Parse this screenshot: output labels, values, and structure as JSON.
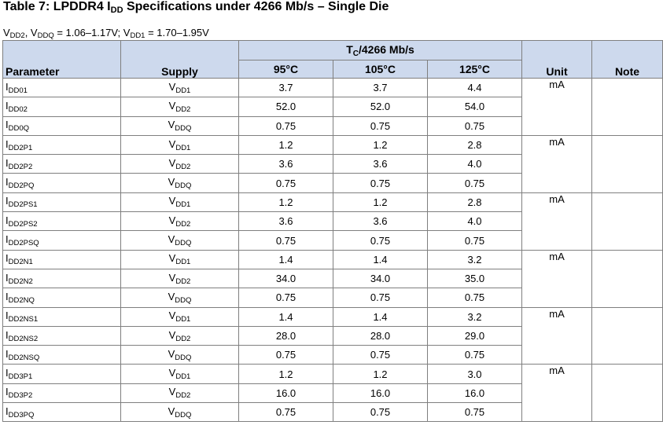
{
  "title": {
    "prefix": "Table 7: LPDDR4 I",
    "sub": "DD",
    "suffix": " Specifications under 4266 Mb/s – Single Die"
  },
  "conditions": [
    {
      "sym": "V",
      "sub": "DD2",
      "text": ", "
    },
    {
      "sym": "V",
      "sub": "DDQ",
      "text": " = 1.06–1.17V; "
    },
    {
      "sym": "V",
      "sub": "DD1",
      "text": " = 1.70–1.95V"
    }
  ],
  "headers": {
    "parameter": "Parameter",
    "supply": "Supply",
    "group_sym": "T",
    "group_sub": "C",
    "group_text": "/4266 Mb/s",
    "temps": [
      "95°C",
      "105°C",
      "125°C"
    ],
    "unit": "Unit",
    "note": "Note"
  },
  "groups": [
    {
      "unit": "mA",
      "note": "",
      "rows": [
        {
          "param": "DD01",
          "supply": "DD1",
          "v95": "3.7",
          "v105": "3.7",
          "v125": "4.4"
        },
        {
          "param": "DD02",
          "supply": "DD2",
          "v95": "52.0",
          "v105": "52.0",
          "v125": "54.0"
        },
        {
          "param": "DD0Q",
          "supply": "DDQ",
          "v95": "0.75",
          "v105": "0.75",
          "v125": "0.75"
        }
      ]
    },
    {
      "unit": "mA",
      "note": "",
      "rows": [
        {
          "param": "DD2P1",
          "supply": "DD1",
          "v95": "1.2",
          "v105": "1.2",
          "v125": "2.8"
        },
        {
          "param": "DD2P2",
          "supply": "DD2",
          "v95": "3.6",
          "v105": "3.6",
          "v125": "4.0"
        },
        {
          "param": "DD2PQ",
          "supply": "DDQ",
          "v95": "0.75",
          "v105": "0.75",
          "v125": "0.75"
        }
      ]
    },
    {
      "unit": "mA",
      "note": "",
      "rows": [
        {
          "param": "DD2PS1",
          "supply": "DD1",
          "v95": "1.2",
          "v105": "1.2",
          "v125": "2.8"
        },
        {
          "param": "DD2PS2",
          "supply": "DD2",
          "v95": "3.6",
          "v105": "3.6",
          "v125": "4.0"
        },
        {
          "param": "DD2PSQ",
          "supply": "DDQ",
          "v95": "0.75",
          "v105": "0.75",
          "v125": "0.75"
        }
      ]
    },
    {
      "unit": "mA",
      "note": "",
      "rows": [
        {
          "param": "DD2N1",
          "supply": "DD1",
          "v95": "1.4",
          "v105": "1.4",
          "v125": "3.2"
        },
        {
          "param": "DD2N2",
          "supply": "DD2",
          "v95": "34.0",
          "v105": "34.0",
          "v125": "35.0"
        },
        {
          "param": "DD2NQ",
          "supply": "DDQ",
          "v95": "0.75",
          "v105": "0.75",
          "v125": "0.75"
        }
      ]
    },
    {
      "unit": "mA",
      "note": "",
      "rows": [
        {
          "param": "DD2NS1",
          "supply": "DD1",
          "v95": "1.4",
          "v105": "1.4",
          "v125": "3.2"
        },
        {
          "param": "DD2NS2",
          "supply": "DD2",
          "v95": "28.0",
          "v105": "28.0",
          "v125": "29.0"
        },
        {
          "param": "DD2NSQ",
          "supply": "DDQ",
          "v95": "0.75",
          "v105": "0.75",
          "v125": "0.75"
        }
      ]
    },
    {
      "unit": "mA",
      "note": "",
      "rows": [
        {
          "param": "DD3P1",
          "supply": "DD1",
          "v95": "1.2",
          "v105": "1.2",
          "v125": "3.0"
        },
        {
          "param": "DD3P2",
          "supply": "DD2",
          "v95": "16.0",
          "v105": "16.0",
          "v125": "16.0"
        },
        {
          "param": "DD3PQ",
          "supply": "DDQ",
          "v95": "0.75",
          "v105": "0.75",
          "v125": "0.75"
        }
      ]
    }
  ],
  "symbols": {
    "current": "I",
    "voltage": "V"
  },
  "colors": {
    "header_bg": "#cdd9ed",
    "border": "#7f7f7f"
  }
}
